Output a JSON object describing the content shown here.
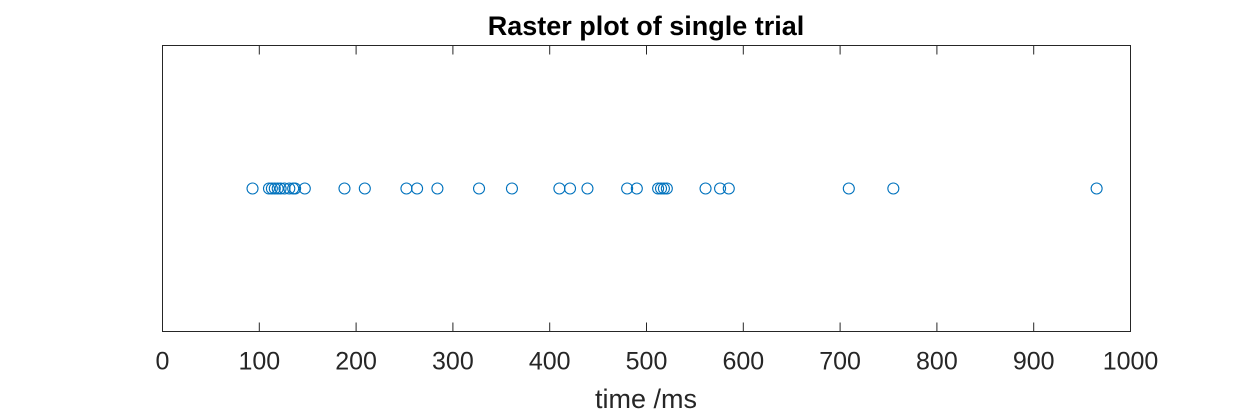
{
  "chart_data": {
    "type": "scatter",
    "title": "Raster plot of single trial",
    "xlabel": "time /ms",
    "ylabel": "",
    "xlim": [
      0,
      1000
    ],
    "ylim": [
      0,
      2
    ],
    "xticks": [
      0,
      100,
      200,
      300,
      400,
      500,
      600,
      700,
      800,
      900,
      1000
    ],
    "grid": false,
    "marker": "circle-open",
    "marker_color": "#0072BD",
    "spikes": [
      {
        "x": 93,
        "y": 1
      },
      {
        "x": 110,
        "y": 1
      },
      {
        "x": 113,
        "y": 1
      },
      {
        "x": 116,
        "y": 1
      },
      {
        "x": 119,
        "y": 1
      },
      {
        "x": 122,
        "y": 1
      },
      {
        "x": 126,
        "y": 1
      },
      {
        "x": 131,
        "y": 1
      },
      {
        "x": 135,
        "y": 1
      },
      {
        "x": 137,
        "y": 1
      },
      {
        "x": 147,
        "y": 1
      },
      {
        "x": 188,
        "y": 1
      },
      {
        "x": 209,
        "y": 1
      },
      {
        "x": 252,
        "y": 1
      },
      {
        "x": 263,
        "y": 1
      },
      {
        "x": 284,
        "y": 1
      },
      {
        "x": 327,
        "y": 1
      },
      {
        "x": 361,
        "y": 1
      },
      {
        "x": 410,
        "y": 1
      },
      {
        "x": 421,
        "y": 1
      },
      {
        "x": 439,
        "y": 1
      },
      {
        "x": 480,
        "y": 1
      },
      {
        "x": 490,
        "y": 1
      },
      {
        "x": 512,
        "y": 1
      },
      {
        "x": 515,
        "y": 1
      },
      {
        "x": 518,
        "y": 1
      },
      {
        "x": 521,
        "y": 1
      },
      {
        "x": 561,
        "y": 1
      },
      {
        "x": 576,
        "y": 1
      },
      {
        "x": 585,
        "y": 1
      },
      {
        "x": 709,
        "y": 1
      },
      {
        "x": 755,
        "y": 1
      },
      {
        "x": 965,
        "y": 1
      }
    ]
  }
}
